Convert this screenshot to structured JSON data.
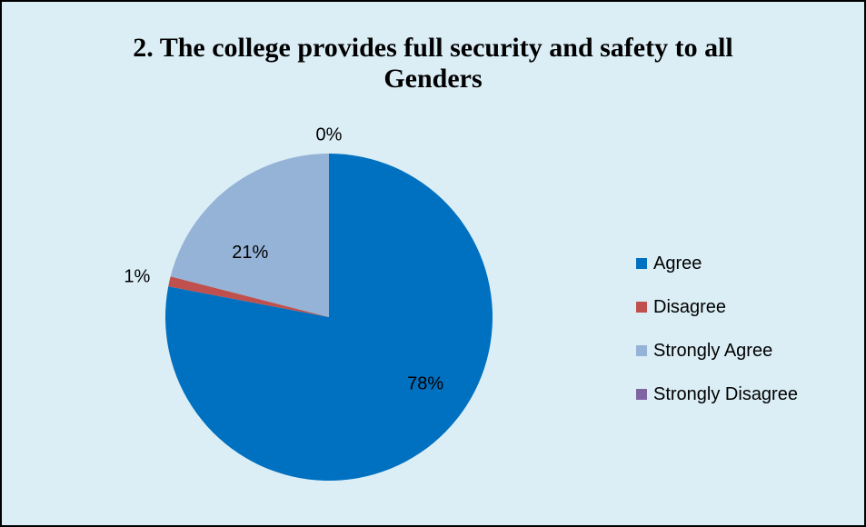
{
  "chart_data": {
    "type": "pie",
    "title": "2. The college provides full security and safety to all Genders",
    "title_lines": [
      "2. The college provides full security and safety to all",
      "Genders"
    ],
    "categories": [
      "Agree",
      "Disagree",
      "Strongly Agree",
      "Strongly Disagree"
    ],
    "values": [
      78,
      1,
      21,
      0
    ],
    "value_labels": [
      "78%",
      "1%",
      "21%",
      "0%"
    ],
    "colors": [
      "#0070c0",
      "#c0504d",
      "#95b3d7",
      "#8064a2"
    ],
    "legend_position": "right",
    "background_color": "#dbeef6",
    "border_color": "#000000"
  }
}
